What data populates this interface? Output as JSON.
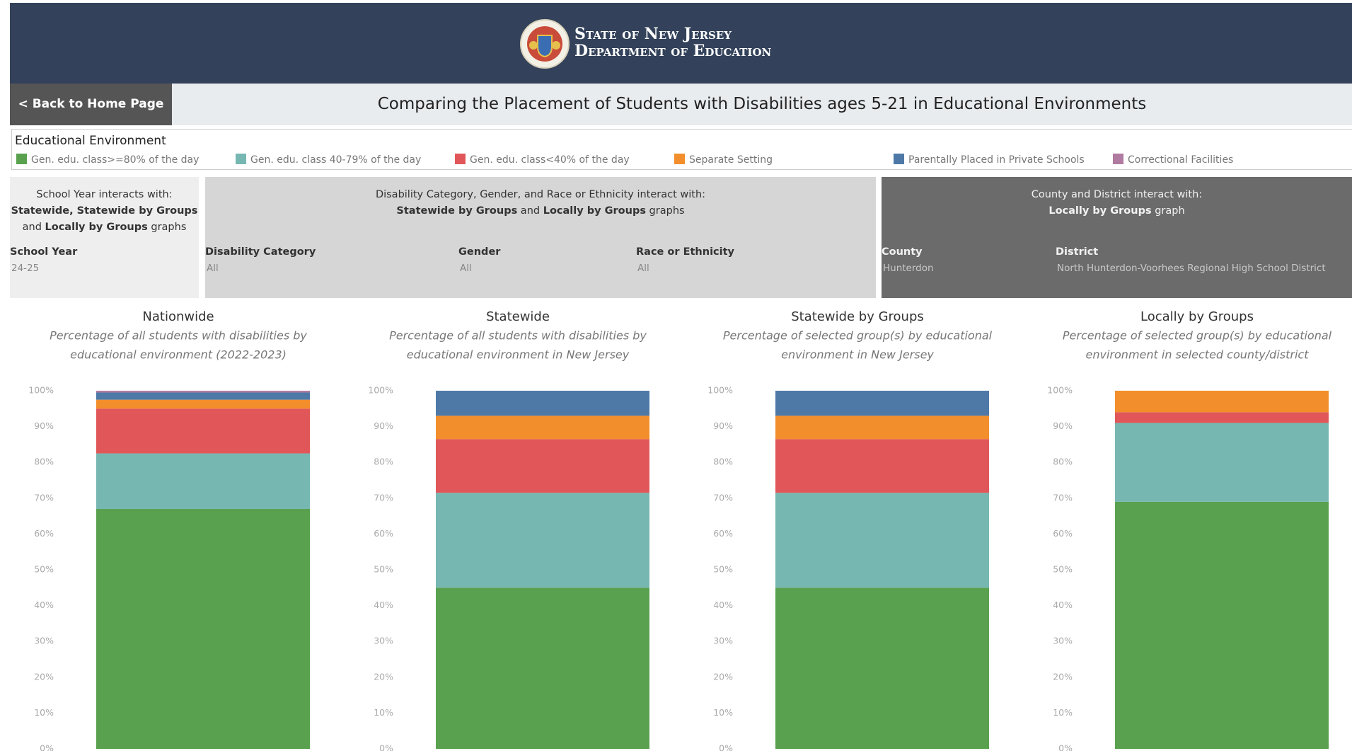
{
  "header": {
    "line1": "State of New Jersey",
    "line2": "Department of Education"
  },
  "back_button": "< Back to Home Page",
  "page_title": "Comparing the Placement of Students with Disabilities ages 5-21 in Educational Environments",
  "legend": {
    "title": "Educational Environment",
    "items": [
      {
        "name": "Gen. edu. class>=80% of the day",
        "color": "#59a14f"
      },
      {
        "name": "Gen. edu. class 40-79% of the day",
        "color": "#76b7b2"
      },
      {
        "name": "Gen. edu. class<40% of the day",
        "color": "#e15759"
      },
      {
        "name": "Separate Setting",
        "color": "#f28e2b"
      },
      {
        "name": "Parentally Placed in Private Schools",
        "color": "#4e79a7"
      },
      {
        "name": "Correctional Facilities",
        "color": "#b07aa1"
      }
    ]
  },
  "filters": {
    "groups": [
      {
        "description": [
          [
            {
              "text": "School Year interacts with:"
            }
          ],
          [
            {
              "text": "Statewide, Statewide by Groups",
              "bold": true
            }
          ],
          [
            {
              "text": "and "
            },
            {
              "text": "Locally by Groups",
              "bold": true
            },
            {
              "text": " graphs"
            }
          ]
        ],
        "fields": [
          {
            "label": "School Year",
            "value": "24-25"
          }
        ]
      },
      {
        "description": [
          [
            {
              "text": "Disability Category, Gender, and Race or Ethnicity interact with:"
            }
          ],
          [
            {
              "text": "Statewide by Groups",
              "bold": true
            },
            {
              "text": " and "
            },
            {
              "text": "Locally by Groups",
              "bold": true
            },
            {
              "text": " graphs"
            }
          ]
        ],
        "fields": [
          {
            "label": "Disability Category",
            "value": "All"
          },
          {
            "label": "Gender",
            "value": "All"
          },
          {
            "label": "Race or Ethnicity",
            "value": "All"
          }
        ]
      },
      {
        "description": [
          [
            {
              "text": "County and District interact with:"
            }
          ],
          [
            {
              "text": "Locally by Groups",
              "bold": true
            },
            {
              "text": " graph"
            }
          ]
        ],
        "fields": [
          {
            "label": "County",
            "value": "Hunterdon"
          },
          {
            "label": "District",
            "value": "North Hunterdon-Voorhees Regional High School District"
          }
        ]
      }
    ]
  },
  "chart_data": [
    {
      "type": "stacked-bar",
      "title": "Nationwide",
      "subtitle": [
        "Percentage of all students with disabilities by",
        "educational environment (2022-2023)"
      ],
      "values": [
        67,
        15.5,
        12.5,
        2.5,
        2,
        0.5
      ],
      "ylim": [
        0,
        100
      ],
      "yticks": [
        {
          "value": 0,
          "label": "0%"
        },
        {
          "value": 10,
          "label": "10%"
        },
        {
          "value": 20,
          "label": "20%"
        },
        {
          "value": 30,
          "label": "30%"
        },
        {
          "value": 40,
          "label": "40%"
        },
        {
          "value": 50,
          "label": "50%"
        },
        {
          "value": 60,
          "label": "60%"
        },
        {
          "value": 70,
          "label": "70%"
        },
        {
          "value": 80,
          "label": "80%"
        },
        {
          "value": 90,
          "label": "90%"
        },
        {
          "value": 100,
          "label": "100%"
        }
      ]
    },
    {
      "type": "stacked-bar",
      "title": "Statewide",
      "subtitle": [
        "Percentage of all students with disabilities by",
        "educational environment in New Jersey"
      ],
      "values": [
        45,
        26.5,
        15,
        6.5,
        7,
        0
      ],
      "ylim": [
        0,
        100
      ],
      "yticks": [
        {
          "value": 0,
          "label": "0%"
        },
        {
          "value": 10,
          "label": "10%"
        },
        {
          "value": 20,
          "label": "20%"
        },
        {
          "value": 30,
          "label": "30%"
        },
        {
          "value": 40,
          "label": "40%"
        },
        {
          "value": 50,
          "label": "50%"
        },
        {
          "value": 60,
          "label": "60%"
        },
        {
          "value": 70,
          "label": "70%"
        },
        {
          "value": 80,
          "label": "80%"
        },
        {
          "value": 90,
          "label": "90%"
        },
        {
          "value": 100,
          "label": "100%"
        }
      ]
    },
    {
      "type": "stacked-bar",
      "title": "Statewide by Groups",
      "subtitle": [
        "Percentage of selected group(s) by educational",
        "environment in New Jersey"
      ],
      "values": [
        45,
        26.5,
        15,
        6.5,
        7,
        0
      ],
      "ylim": [
        0,
        100
      ],
      "yticks": [
        {
          "value": 0,
          "label": "0%"
        },
        {
          "value": 10,
          "label": "10%"
        },
        {
          "value": 20,
          "label": "20%"
        },
        {
          "value": 30,
          "label": "30%"
        },
        {
          "value": 40,
          "label": "40%"
        },
        {
          "value": 50,
          "label": "50%"
        },
        {
          "value": 60,
          "label": "60%"
        },
        {
          "value": 70,
          "label": "70%"
        },
        {
          "value": 80,
          "label": "80%"
        },
        {
          "value": 90,
          "label": "90%"
        },
        {
          "value": 100,
          "label": "100%"
        }
      ]
    },
    {
      "type": "stacked-bar",
      "title": "Locally by Groups",
      "subtitle": [
        "Percentage of selected group(s) by educational",
        "environment in selected county/district"
      ],
      "values": [
        69,
        22,
        3,
        6,
        0,
        0
      ],
      "ylim": [
        0,
        100
      ],
      "yticks": [
        {
          "value": 0,
          "label": "0%"
        },
        {
          "value": 10,
          "label": "10%"
        },
        {
          "value": 20,
          "label": "20%"
        },
        {
          "value": 30,
          "label": "30%"
        },
        {
          "value": 40,
          "label": "40%"
        },
        {
          "value": 50,
          "label": "50%"
        },
        {
          "value": 60,
          "label": "60%"
        },
        {
          "value": 70,
          "label": "70%"
        },
        {
          "value": 80,
          "label": "80%"
        },
        {
          "value": 90,
          "label": "90%"
        },
        {
          "value": 100,
          "label": "100%"
        }
      ]
    }
  ]
}
